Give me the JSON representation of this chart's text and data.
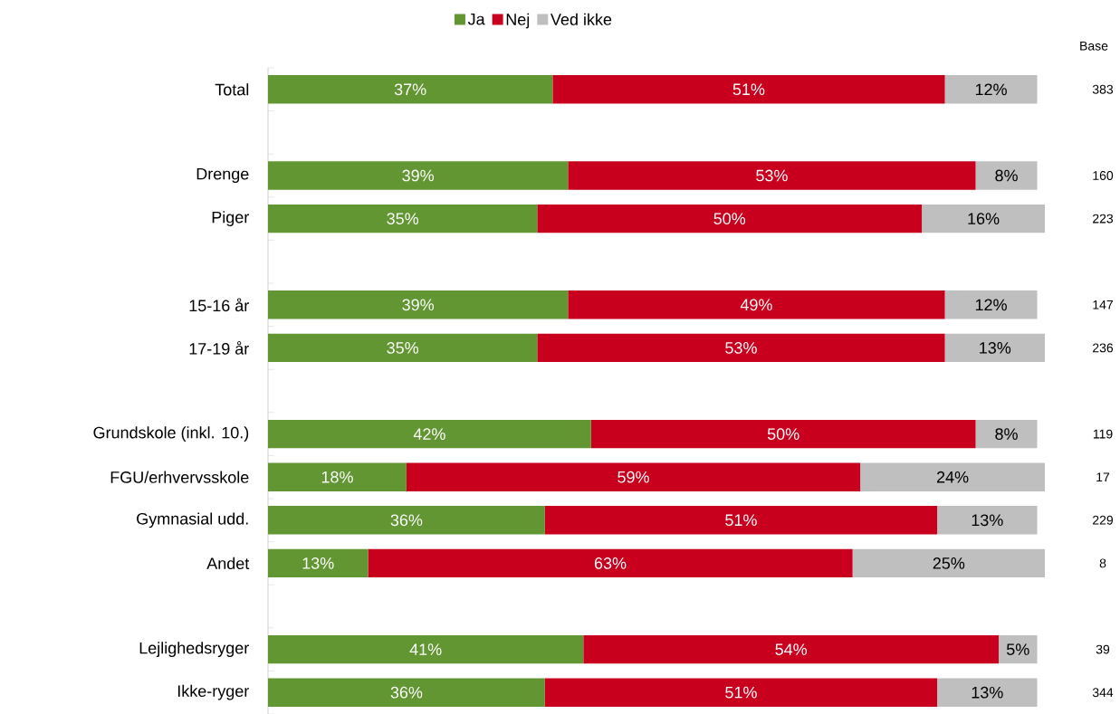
{
  "chart_data": {
    "type": "bar",
    "orientation": "horizontal",
    "stacked": true,
    "legend": "top",
    "categories": [
      "Total",
      null,
      "Drenge",
      "Piger",
      null,
      "15-16 år",
      "17-19 år",
      null,
      "Grundskole (inkl. 10.)",
      "FGU/erhvervsskole",
      "Gymnasial udd.",
      "Andet",
      null,
      "Lejlighedsryger",
      "Ikke-ryger"
    ],
    "series": [
      {
        "name": "Ja",
        "color": "#629632",
        "values": [
          37,
          null,
          39,
          35,
          null,
          39,
          35,
          null,
          42,
          18,
          36,
          13,
          null,
          41,
          36
        ],
        "value_labels": [
          "37%",
          null,
          "39%",
          "35%",
          null,
          "39%",
          "35%",
          null,
          "42%",
          "18%",
          "36%",
          "13%",
          null,
          "41%",
          "36%"
        ]
      },
      {
        "name": "Nej",
        "color": "#c8001e",
        "values": [
          51,
          null,
          53,
          50,
          null,
          49,
          53,
          null,
          50,
          59,
          51,
          63,
          null,
          54,
          51
        ],
        "value_labels": [
          "51%",
          null,
          "53%",
          "50%",
          null,
          "49%",
          "53%",
          null,
          "50%",
          "59%",
          "51%",
          "63%",
          null,
          "54%",
          "51%"
        ]
      },
      {
        "name": "Ved ikke",
        "color": "#bfbfbf",
        "values": [
          12,
          null,
          8,
          16,
          null,
          12,
          13,
          null,
          8,
          24,
          13,
          25,
          null,
          5,
          13
        ],
        "value_labels": [
          "12%",
          null,
          "8%",
          "16%",
          null,
          "12%",
          "13%",
          null,
          "8%",
          "24%",
          "13%",
          "25%",
          null,
          "5%",
          "13%"
        ]
      }
    ],
    "annotations": [
      "Base",
      "383",
      "160",
      "223",
      "147",
      "236",
      "119",
      "17",
      "229",
      "8",
      "39",
      "344"
    ]
  }
}
